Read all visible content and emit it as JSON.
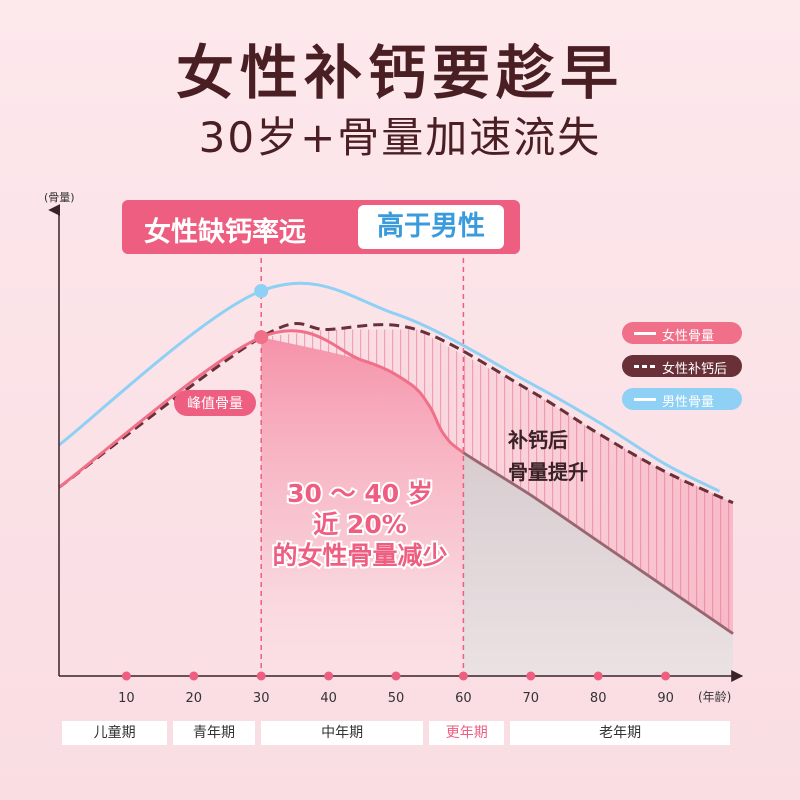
{
  "header": {
    "title": "女性补钙要趁早",
    "subtitle": "30岁+骨量加速流失"
  },
  "callout": {
    "left_text": "女性缺钙率远",
    "right_text": "高于男性"
  },
  "colors": {
    "female": "#f0708a",
    "female_supplement": "#6a3038",
    "male": "#8fd0f5",
    "accent": "#ee5e80"
  },
  "chart_data": {
    "type": "line",
    "ylabel": "(骨量)",
    "xlabel": "(年龄)",
    "x_ticks": [
      10,
      20,
      30,
      40,
      50,
      60,
      70,
      80,
      90
    ],
    "xlim": [
      0,
      100
    ],
    "series": [
      {
        "name": "男性骨量",
        "x": [
          0,
          30,
          50,
          70,
          80,
          90,
          98
        ],
        "y": [
          0.6,
          1.0,
          0.94,
          0.76,
          0.66,
          0.55,
          0.48
        ]
      },
      {
        "name": "女性补钙后",
        "x": [
          0,
          30,
          40,
          53,
          70,
          80,
          90,
          100
        ],
        "y": [
          0.49,
          0.88,
          0.9,
          0.9,
          0.74,
          0.63,
          0.53,
          0.45
        ]
      },
      {
        "name": "女性骨量",
        "x": [
          0,
          30,
          45,
          52,
          55,
          57,
          60,
          70,
          80,
          90,
          100
        ],
        "y": [
          0.49,
          0.88,
          0.82,
          0.76,
          0.7,
          0.63,
          0.58,
          0.47,
          0.35,
          0.23,
          0.11
        ]
      }
    ],
    "peak_label": "峰值骨量",
    "annotations": {
      "drop_text_lines": [
        "30 ～ 40 岁",
        "近 20%",
        "的女性骨量减少"
      ],
      "supplement_text_lines": [
        "补钙后",
        "骨量提升"
      ]
    },
    "stages": [
      {
        "label": "儿童期",
        "from": 0,
        "to": 16.5,
        "highlight": false
      },
      {
        "label": "青年期",
        "from": 16.5,
        "to": 29.5,
        "highlight": false
      },
      {
        "label": "中年期",
        "from": 29.5,
        "to": 54.5,
        "highlight": false
      },
      {
        "label": "更年期",
        "from": 54.5,
        "to": 66.5,
        "highlight": true
      },
      {
        "label": "老年期",
        "from": 66.5,
        "to": 100,
        "highlight": false
      }
    ]
  },
  "legend": [
    {
      "label": "女性骨量",
      "style": "solid",
      "color": "#f0708a"
    },
    {
      "label": "女性补钙后",
      "style": "dashed",
      "color": "#6a3038"
    },
    {
      "label": "男性骨量",
      "style": "solid",
      "color": "#8fd0f5"
    }
  ]
}
